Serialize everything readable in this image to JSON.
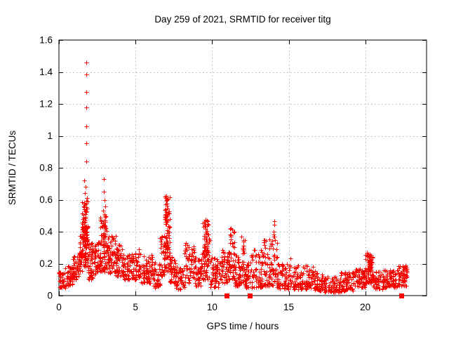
{
  "window": {
    "background": "#ffffff"
  },
  "chart_data": {
    "type": "scatter",
    "title": "Day 259 of 2021, SRMTID for receiver titg",
    "xlabel": "GPS time / hours",
    "ylabel": "SRMTID / TECUs",
    "xlim": [
      0,
      24
    ],
    "ylim": [
      0,
      1.6
    ],
    "xticks": [
      0,
      5,
      10,
      15,
      20
    ],
    "xtick_labels": [
      "0",
      "5",
      "10",
      "15",
      "20"
    ],
    "yticks": [
      0,
      0.2,
      0.4,
      0.6,
      0.8,
      1,
      1.2,
      1.4,
      1.6
    ],
    "ytick_labels": [
      "0",
      "0.2",
      "0.4",
      "0.6",
      "0.8",
      "1",
      "1.2",
      "1.4",
      "1.6"
    ],
    "grid": true,
    "grid_color": "#b0b0b0",
    "border_color": "#000000",
    "marker_color": "#ff0000",
    "series": [
      {
        "name": "srmtid",
        "marker": "plus",
        "color": "#ff0000",
        "seed": 20210259,
        "band_segments": [
          [
            0.0,
            0.4,
            35,
            0.05,
            0.15
          ],
          [
            0.4,
            0.9,
            45,
            0.06,
            0.19
          ],
          [
            0.9,
            1.3,
            40,
            0.1,
            0.26
          ],
          [
            1.3,
            1.5,
            30,
            0.15,
            0.38
          ],
          [
            1.5,
            1.9,
            100,
            0.18,
            0.62
          ],
          [
            1.6,
            1.85,
            30,
            0.3,
            0.6
          ],
          [
            1.9,
            2.3,
            45,
            0.1,
            0.33
          ],
          [
            2.3,
            2.7,
            40,
            0.13,
            0.35
          ],
          [
            2.7,
            3.2,
            70,
            0.15,
            0.5
          ],
          [
            2.88,
            3.05,
            25,
            0.3,
            0.52
          ],
          [
            3.2,
            3.7,
            55,
            0.14,
            0.38
          ],
          [
            3.7,
            4.2,
            50,
            0.12,
            0.32
          ],
          [
            4.2,
            4.8,
            50,
            0.1,
            0.26
          ],
          [
            4.8,
            5.3,
            45,
            0.1,
            0.3
          ],
          [
            5.3,
            6.1,
            70,
            0.08,
            0.26
          ],
          [
            6.1,
            6.6,
            40,
            0.05,
            0.22
          ],
          [
            6.6,
            6.9,
            30,
            0.12,
            0.4
          ],
          [
            6.9,
            7.25,
            60,
            0.15,
            0.62
          ],
          [
            6.92,
            7.12,
            30,
            0.3,
            0.62
          ],
          [
            7.25,
            7.6,
            35,
            0.08,
            0.25
          ],
          [
            7.6,
            8.2,
            50,
            0.04,
            0.18
          ],
          [
            8.2,
            8.9,
            60,
            0.08,
            0.33
          ],
          [
            8.9,
            9.3,
            40,
            0.06,
            0.24
          ],
          [
            9.3,
            9.85,
            65,
            0.1,
            0.47
          ],
          [
            9.45,
            9.7,
            25,
            0.25,
            0.47
          ],
          [
            9.85,
            10.6,
            60,
            0.05,
            0.24
          ],
          [
            10.6,
            11.1,
            45,
            0.08,
            0.3
          ],
          [
            11.1,
            11.45,
            40,
            0.1,
            0.42
          ],
          [
            11.45,
            11.85,
            40,
            0.06,
            0.25
          ],
          [
            11.85,
            12.15,
            30,
            0.08,
            0.37
          ],
          [
            12.15,
            12.45,
            30,
            0.05,
            0.22
          ],
          [
            12.45,
            13.3,
            70,
            0.05,
            0.29
          ],
          [
            13.3,
            14.0,
            60,
            0.06,
            0.36
          ],
          [
            14.0,
            14.25,
            25,
            0.08,
            0.4
          ],
          [
            14.25,
            15.2,
            70,
            0.04,
            0.2
          ],
          [
            15.2,
            16.4,
            85,
            0.04,
            0.19
          ],
          [
            16.4,
            17.3,
            65,
            0.03,
            0.16
          ],
          [
            17.3,
            18.4,
            75,
            0.02,
            0.12
          ],
          [
            18.4,
            19.3,
            65,
            0.03,
            0.15
          ],
          [
            19.3,
            20.0,
            55,
            0.05,
            0.17
          ],
          [
            20.0,
            20.5,
            55,
            0.08,
            0.27
          ],
          [
            20.15,
            20.4,
            30,
            0.16,
            0.26
          ],
          [
            20.5,
            21.3,
            60,
            0.04,
            0.16
          ],
          [
            21.3,
            22.1,
            60,
            0.05,
            0.16
          ],
          [
            22.1,
            22.75,
            55,
            0.06,
            0.19
          ]
        ],
        "outlier_points": [
          [
            1.79,
            1.458
          ],
          [
            1.8,
            1.385
          ],
          [
            1.78,
            1.275
          ],
          [
            1.8,
            1.177
          ],
          [
            1.79,
            1.059
          ],
          [
            1.8,
            0.952
          ],
          [
            1.78,
            0.84
          ],
          [
            1.65,
            0.72
          ],
          [
            1.7,
            0.64
          ],
          [
            1.72,
            0.68
          ],
          [
            2.93,
            0.73
          ],
          [
            2.93,
            0.652
          ],
          [
            2.97,
            0.6
          ],
          [
            3.0,
            0.56
          ],
          [
            2.9,
            0.53
          ],
          [
            7.0,
            0.625
          ],
          [
            7.05,
            0.6
          ],
          [
            6.95,
            0.57
          ],
          [
            9.55,
            0.475
          ],
          [
            9.5,
            0.452
          ],
          [
            11.2,
            0.42
          ],
          [
            14.05,
            0.466
          ],
          [
            14.08,
            0.444
          ],
          [
            14.02,
            0.4
          ],
          [
            15.1,
            0.235
          ],
          [
            16.6,
            0.18
          ],
          [
            20.28,
            0.26
          ],
          [
            20.32,
            0.252
          ],
          [
            20.25,
            0.24
          ],
          [
            22.45,
            0.185
          ],
          [
            22.6,
            0.17
          ]
        ]
      },
      {
        "name": "zero-flags",
        "marker": "filled-square",
        "color": "#ff0000",
        "points": [
          [
            10.93,
            0
          ],
          [
            12.48,
            0
          ],
          [
            22.35,
            0
          ]
        ]
      }
    ]
  }
}
